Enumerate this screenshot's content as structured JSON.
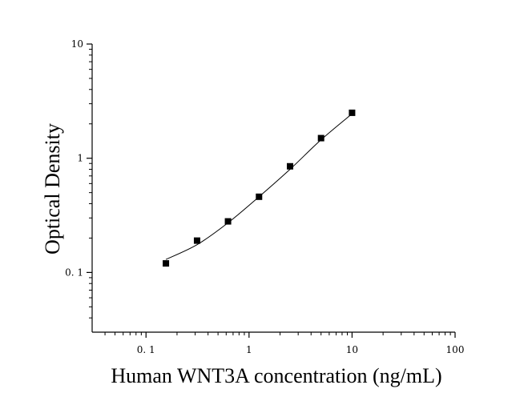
{
  "chart_data": {
    "type": "scatter",
    "title": "",
    "xlabel": "Human WNT3A concentration (ng/mL)",
    "ylabel": "Optical Density",
    "x_scale": "log",
    "y_scale": "log",
    "xlim": [
      0.03,
      100
    ],
    "ylim": [
      0.03,
      10
    ],
    "x_ticks": [
      0.1,
      1,
      10,
      100
    ],
    "x_tick_labels": [
      "0. 1",
      "1",
      "10",
      "100"
    ],
    "y_ticks": [
      0.1,
      1,
      10
    ],
    "y_tick_labels": [
      "0. 1",
      "1",
      "10"
    ],
    "grid": false,
    "legend": "none",
    "series": [
      {
        "marker": "square",
        "color": "#000000",
        "x": [
          0.156,
          0.313,
          0.625,
          1.25,
          2.5,
          5,
          10
        ],
        "y": [
          0.12,
          0.19,
          0.28,
          0.46,
          0.85,
          1.5,
          2.5
        ]
      }
    ],
    "fit_curve": {
      "style": "line",
      "color": "#000000",
      "x": [
        0.156,
        0.313,
        0.625,
        1.25,
        2.5,
        5,
        10
      ],
      "y": [
        0.13,
        0.175,
        0.272,
        0.46,
        0.8,
        1.45,
        2.45
      ]
    }
  }
}
